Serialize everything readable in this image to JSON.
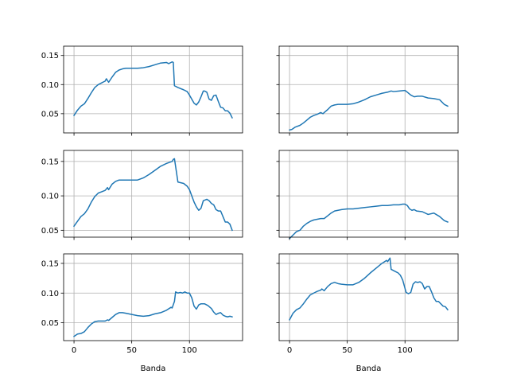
{
  "figure": {
    "xlabel": "Banda"
  },
  "chart_data": [
    {
      "type": "line",
      "xlim": [
        -9,
        146
      ],
      "ylim": [
        0.017,
        0.166
      ],
      "xticks": [
        0,
        50,
        100
      ],
      "yticks": [
        0.05,
        0.1,
        0.15
      ],
      "xtick_labels": [
        "0",
        "50",
        "100"
      ],
      "ytick_labels": [
        "0.05",
        "0.10",
        "0.15"
      ],
      "grid": true,
      "xlabel": "",
      "series_color": "#1f77b4",
      "series": [
        {
          "x": [
            0,
            3,
            6,
            9,
            12,
            15,
            18,
            21,
            24,
            27,
            28,
            30,
            33,
            36,
            39,
            42,
            45,
            50,
            55,
            60,
            65,
            70,
            75,
            80,
            82,
            85,
            86,
            87,
            90,
            95,
            98,
            100,
            102,
            104,
            106,
            108,
            110,
            112,
            113,
            115,
            117,
            119,
            121,
            123,
            125,
            127,
            129,
            131,
            133,
            135,
            137
          ],
          "y": [
            0.047,
            0.056,
            0.063,
            0.067,
            0.076,
            0.086,
            0.095,
            0.1,
            0.103,
            0.106,
            0.11,
            0.104,
            0.113,
            0.121,
            0.125,
            0.127,
            0.128,
            0.128,
            0.128,
            0.129,
            0.131,
            0.134,
            0.137,
            0.138,
            0.136,
            0.139,
            0.138,
            0.098,
            0.095,
            0.091,
            0.088,
            0.082,
            0.075,
            0.068,
            0.065,
            0.07,
            0.079,
            0.089,
            0.089,
            0.087,
            0.075,
            0.073,
            0.081,
            0.082,
            0.071,
            0.061,
            0.06,
            0.055,
            0.055,
            0.051,
            0.043
          ]
        }
      ]
    },
    {
      "type": "line",
      "xlim": [
        -9,
        146
      ],
      "ylim": [
        0.017,
        0.166
      ],
      "xticks": [
        0,
        50,
        100
      ],
      "yticks": [
        0.05,
        0.1,
        0.15
      ],
      "xtick_labels": [
        "0",
        "50",
        "100"
      ],
      "ytick_labels": [],
      "grid": true,
      "xlabel": "",
      "series_color": "#1f77b4",
      "series": [
        {
          "x": [
            0,
            2,
            5,
            9,
            12,
            15,
            18,
            21,
            24,
            27,
            29,
            30,
            33,
            36,
            39,
            42,
            45,
            50,
            55,
            60,
            65,
            70,
            75,
            80,
            85,
            88,
            90,
            95,
            100,
            102,
            105,
            108,
            111,
            115,
            120,
            125,
            130,
            134,
            137
          ],
          "y": [
            0.022,
            0.023,
            0.027,
            0.03,
            0.034,
            0.039,
            0.044,
            0.047,
            0.049,
            0.052,
            0.05,
            0.052,
            0.057,
            0.063,
            0.065,
            0.066,
            0.066,
            0.066,
            0.067,
            0.07,
            0.074,
            0.079,
            0.082,
            0.085,
            0.087,
            0.089,
            0.088,
            0.089,
            0.09,
            0.087,
            0.082,
            0.079,
            0.08,
            0.08,
            0.077,
            0.076,
            0.074,
            0.066,
            0.063
          ]
        }
      ]
    },
    {
      "type": "line",
      "xlim": [
        -9,
        146
      ],
      "ylim": [
        0.04,
        0.166
      ],
      "xticks": [
        0,
        50,
        100
      ],
      "yticks": [
        0.05,
        0.1,
        0.15
      ],
      "xtick_labels": [
        "0",
        "50",
        "100"
      ],
      "ytick_labels": [
        "0.05",
        "0.10",
        "0.15"
      ],
      "grid": true,
      "xlabel": "",
      "series_color": "#1f77b4",
      "series": [
        {
          "x": [
            0,
            3,
            6,
            9,
            12,
            15,
            18,
            21,
            24,
            27,
            29,
            30,
            33,
            36,
            39,
            42,
            45,
            50,
            55,
            60,
            65,
            70,
            75,
            80,
            85,
            86,
            87,
            90,
            95,
            98,
            100,
            102,
            104,
            106,
            108,
            110,
            112,
            115,
            117,
            119,
            121,
            123,
            125,
            127,
            129,
            131,
            133,
            135,
            137
          ],
          "y": [
            0.056,
            0.063,
            0.07,
            0.074,
            0.081,
            0.091,
            0.099,
            0.104,
            0.106,
            0.108,
            0.112,
            0.109,
            0.117,
            0.121,
            0.123,
            0.123,
            0.123,
            0.123,
            0.123,
            0.126,
            0.131,
            0.137,
            0.143,
            0.147,
            0.15,
            0.153,
            0.154,
            0.12,
            0.118,
            0.114,
            0.109,
            0.1,
            0.091,
            0.084,
            0.079,
            0.082,
            0.093,
            0.095,
            0.093,
            0.089,
            0.087,
            0.08,
            0.078,
            0.078,
            0.07,
            0.062,
            0.062,
            0.059,
            0.05
          ]
        }
      ]
    },
    {
      "type": "line",
      "xlim": [
        -9,
        146
      ],
      "ylim": [
        0.04,
        0.166
      ],
      "xticks": [
        0,
        50,
        100
      ],
      "yticks": [
        0.05,
        0.1,
        0.15
      ],
      "xtick_labels": [
        "0",
        "50",
        "100"
      ],
      "ytick_labels": [],
      "grid": true,
      "xlabel": "",
      "series_color": "#1f77b4",
      "series": [
        {
          "x": [
            0,
            3,
            6,
            9,
            12,
            15,
            18,
            21,
            24,
            27,
            30,
            33,
            36,
            39,
            42,
            45,
            50,
            55,
            60,
            65,
            70,
            75,
            80,
            85,
            90,
            95,
            98,
            100,
            102,
            104,
            106,
            108,
            110,
            115,
            120,
            125,
            130,
            134,
            137
          ],
          "y": [
            0.038,
            0.043,
            0.048,
            0.05,
            0.056,
            0.06,
            0.063,
            0.065,
            0.066,
            0.067,
            0.067,
            0.071,
            0.075,
            0.078,
            0.079,
            0.08,
            0.081,
            0.081,
            0.082,
            0.083,
            0.084,
            0.085,
            0.086,
            0.086,
            0.087,
            0.087,
            0.088,
            0.088,
            0.086,
            0.081,
            0.079,
            0.08,
            0.078,
            0.077,
            0.073,
            0.075,
            0.07,
            0.064,
            0.062
          ]
        }
      ]
    },
    {
      "type": "line",
      "xlim": [
        -9,
        146
      ],
      "ylim": [
        0.02,
        0.166
      ],
      "xticks": [
        0,
        50,
        100
      ],
      "yticks": [
        0.05,
        0.1,
        0.15
      ],
      "xtick_labels": [
        "0",
        "50",
        "100"
      ],
      "ytick_labels": [
        "0.05",
        "0.10",
        "0.15"
      ],
      "grid": true,
      "xlabel": "Banda",
      "series_color": "#1f77b4",
      "series": [
        {
          "x": [
            0,
            3,
            6,
            9,
            12,
            15,
            18,
            21,
            24,
            27,
            29,
            30,
            33,
            36,
            39,
            42,
            45,
            50,
            55,
            60,
            65,
            70,
            75,
            80,
            84,
            85,
            87,
            88,
            90,
            92,
            94,
            96,
            98,
            100,
            102,
            104,
            106,
            108,
            110,
            113,
            116,
            119,
            121,
            123,
            125,
            127,
            129,
            131,
            133,
            135,
            137
          ],
          "y": [
            0.027,
            0.031,
            0.032,
            0.035,
            0.042,
            0.048,
            0.052,
            0.053,
            0.053,
            0.053,
            0.055,
            0.054,
            0.059,
            0.064,
            0.067,
            0.067,
            0.066,
            0.064,
            0.062,
            0.061,
            0.062,
            0.065,
            0.067,
            0.071,
            0.076,
            0.075,
            0.086,
            0.102,
            0.1,
            0.101,
            0.1,
            0.102,
            0.1,
            0.1,
            0.092,
            0.078,
            0.073,
            0.08,
            0.082,
            0.082,
            0.079,
            0.074,
            0.068,
            0.064,
            0.066,
            0.067,
            0.063,
            0.061,
            0.06,
            0.061,
            0.06
          ]
        }
      ]
    },
    {
      "type": "line",
      "xlim": [
        -9,
        146
      ],
      "ylim": [
        0.02,
        0.166
      ],
      "xticks": [
        0,
        50,
        100
      ],
      "yticks": [
        0.05,
        0.1,
        0.15
      ],
      "xtick_labels": [
        "0",
        "50",
        "100"
      ],
      "ytick_labels": [],
      "grid": true,
      "xlabel": "Banda",
      "series_color": "#1f77b4",
      "series": [
        {
          "x": [
            0,
            3,
            6,
            9,
            12,
            15,
            18,
            21,
            24,
            27,
            28,
            30,
            33,
            36,
            39,
            42,
            45,
            50,
            55,
            60,
            65,
            70,
            75,
            80,
            84,
            85,
            87,
            88,
            90,
            92,
            94,
            96,
            98,
            100,
            101,
            103,
            105,
            107,
            109,
            111,
            113,
            115,
            117,
            119,
            121,
            123,
            125,
            127,
            129,
            131,
            133,
            135,
            137
          ],
          "y": [
            0.055,
            0.066,
            0.072,
            0.075,
            0.082,
            0.09,
            0.097,
            0.1,
            0.103,
            0.105,
            0.107,
            0.104,
            0.111,
            0.116,
            0.118,
            0.116,
            0.115,
            0.114,
            0.114,
            0.118,
            0.125,
            0.134,
            0.142,
            0.15,
            0.155,
            0.153,
            0.159,
            0.14,
            0.138,
            0.136,
            0.134,
            0.13,
            0.122,
            0.108,
            0.101,
            0.099,
            0.101,
            0.115,
            0.119,
            0.118,
            0.119,
            0.116,
            0.107,
            0.111,
            0.111,
            0.102,
            0.092,
            0.086,
            0.086,
            0.082,
            0.078,
            0.077,
            0.072
          ]
        }
      ]
    }
  ]
}
